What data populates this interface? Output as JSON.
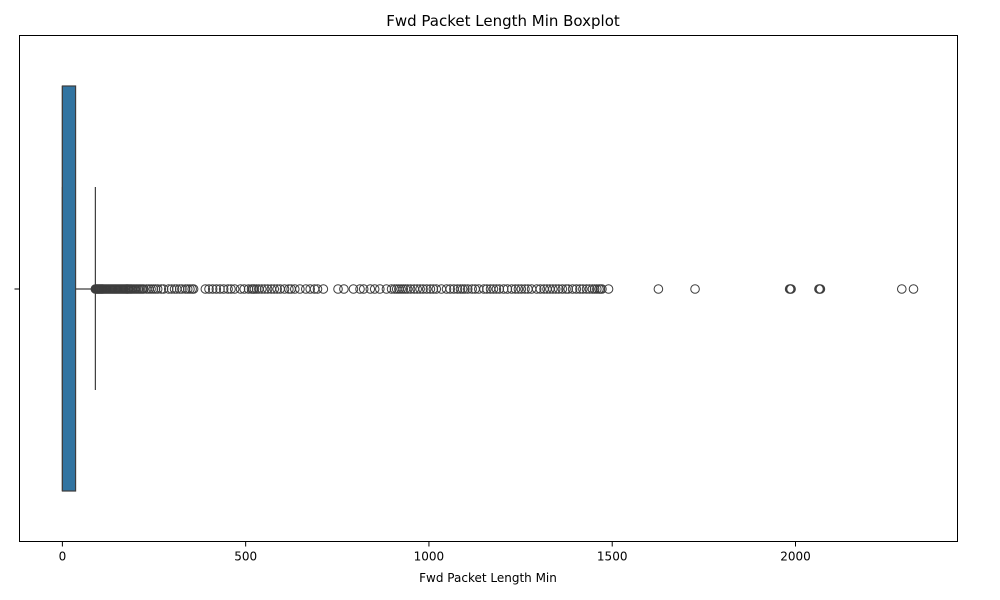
{
  "chart_data": {
    "type": "boxplot",
    "orientation": "horizontal",
    "title": "Fwd Packet Length Min Boxplot",
    "xlabel": "Fwd Packet Length Min",
    "ylabel": "",
    "xlim": [
      -117,
      2442
    ],
    "xticks": [
      0,
      500,
      1000,
      1500,
      2000
    ],
    "grid": false,
    "box_color": "#3274a1",
    "line_color": "#3d3d3d",
    "stats": {
      "whisker_low": 0,
      "q1": 0,
      "median": 0,
      "q3": 36,
      "whisker_high": 90
    },
    "outliers": [
      90,
      92,
      94,
      96,
      98,
      100,
      102,
      104,
      106,
      108,
      110,
      112,
      115,
      118,
      121,
      124,
      127,
      130,
      133,
      136,
      139,
      142,
      145,
      148,
      151,
      154,
      157,
      160,
      163,
      166,
      169,
      172,
      175,
      178,
      181,
      184,
      187,
      190,
      194,
      198,
      202,
      206,
      210,
      214,
      218,
      222,
      230,
      236,
      242,
      248,
      254,
      260,
      270,
      276,
      290,
      298,
      306,
      312,
      320,
      326,
      336,
      342,
      348,
      354,
      358,
      390,
      400,
      410,
      420,
      430,
      440,
      452,
      460,
      470,
      486,
      496,
      508,
      516,
      520,
      524,
      530,
      536,
      544,
      552,
      560,
      570,
      578,
      586,
      594,
      606,
      618,
      624,
      634,
      648,
      664,
      676,
      688,
      696,
      712,
      752,
      768,
      794,
      812,
      822,
      840,
      852,
      866,
      884,
      898,
      906,
      912,
      918,
      924,
      930,
      936,
      942,
      950,
      960,
      968,
      976,
      984,
      994,
      1004,
      1012,
      1020,
      1034,
      1048,
      1058,
      1068,
      1078,
      1086,
      1092,
      1098,
      1106,
      1118,
      1126,
      1136,
      1150,
      1158,
      1168,
      1176,
      1184,
      1192,
      1204,
      1214,
      1226,
      1236,
      1244,
      1252,
      1262,
      1270,
      1280,
      1294,
      1304,
      1314,
      1322,
      1330,
      1338,
      1346,
      1354,
      1364,
      1374,
      1380,
      1392,
      1402,
      1412,
      1420,
      1430,
      1438,
      1446,
      1452,
      1458,
      1464,
      1468,
      1472,
      1490,
      1626,
      1726,
      1984,
      1986,
      1988,
      2064,
      2066,
      2068,
      2290,
      2322
    ]
  }
}
